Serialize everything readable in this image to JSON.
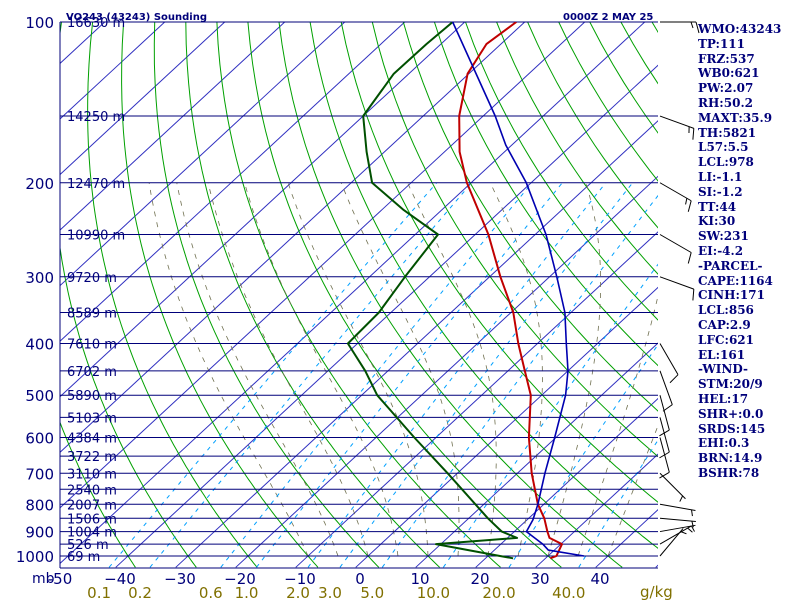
{
  "header": {
    "station": "VO243 (43243) Sounding",
    "valid": "0000Z  2 MAY 25"
  },
  "indices": [
    "WMO:43243",
    "TP:111",
    "FRZ:537",
    "WB0:621",
    "PW:2.07",
    "RH:50.2",
    "MAXT:35.9",
    "TH:5821",
    "L57:5.5",
    "LCL:978",
    "LI:-1.1",
    "SI:-1.2",
    "TT:44",
    "KI:30",
    "SW:231",
    "EI:-4.2",
    "-PARCEL-",
    "CAPE:1164",
    "CINH:171",
    "LCL:856",
    "CAP:2.9",
    "LFC:621",
    "EL:161",
    "-WIND-",
    "STM:20/9",
    "HEL:17",
    "SHR+:0.0",
    "SRDS:145",
    "EHI:0.3",
    "BRN:14.9",
    "BSHR:78"
  ],
  "colors": {
    "isobar": "#00007a",
    "isotherm": "#3030c0",
    "dry_adiabat": "#00a000",
    "mixing_ratio": "#00a0ff",
    "moist_adiabat": "#707050",
    "temperature": "#c00000",
    "dewpoint": "#005000",
    "parcel": "#0000b0",
    "mixing_ratio_labels": "#807000"
  },
  "chart_data": {
    "type": "line",
    "title": "",
    "xlabel": "",
    "ylabel": "mb",
    "pressure_unit_label": "mb",
    "mixing_ratio_unit_label": "g/kg",
    "pressure_levels": [
      {
        "p": 100,
        "label": "100",
        "height": "16630 m"
      },
      {
        "p": 150,
        "label": "",
        "height": "14250 m"
      },
      {
        "p": 200,
        "label": "200",
        "height": "12470 m"
      },
      {
        "p": 250,
        "label": "",
        "height": "10990 m"
      },
      {
        "p": 300,
        "label": "300",
        "height": "9720 m"
      },
      {
        "p": 350,
        "label": "",
        "height": "8589 m"
      },
      {
        "p": 400,
        "label": "400",
        "height": "7610 m"
      },
      {
        "p": 450,
        "label": "",
        "height": "6702 m"
      },
      {
        "p": 500,
        "label": "500",
        "height": "5890 m"
      },
      {
        "p": 550,
        "label": "",
        "height": "5103 m"
      },
      {
        "p": 600,
        "label": "600",
        "height": "4384 m"
      },
      {
        "p": 650,
        "label": "",
        "height": "3722 m"
      },
      {
        "p": 700,
        "label": "700",
        "height": "3110 m"
      },
      {
        "p": 750,
        "label": "",
        "height": "2540 m"
      },
      {
        "p": 800,
        "label": "800",
        "height": "2007 m"
      },
      {
        "p": 850,
        "label": "",
        "height": "1506 m"
      },
      {
        "p": 900,
        "label": "900",
        "height": "1004 m"
      },
      {
        "p": 950,
        "label": "",
        "height": "526 m"
      },
      {
        "p": 1000,
        "label": "1000",
        "height": "69 m"
      }
    ],
    "temperature_ticks": [
      -50,
      -40,
      -30,
      -20,
      -10,
      0,
      10,
      20,
      30,
      40
    ],
    "temperature_tick_labels": [
      "-50",
      "−40",
      "−30",
      "−20",
      "−10",
      "0",
      "10",
      "20",
      "30",
      "40"
    ],
    "mixing_ratio_labels": [
      "0.1",
      "0.2",
      "0.6",
      "1.0",
      "2.0",
      "3.0",
      "5.0",
      "10.0",
      "20.0",
      "40.0"
    ],
    "mixing_ratio_values": [
      0.1,
      0.2,
      0.6,
      1.0,
      2.0,
      3.0,
      5.0,
      10.0,
      20.0,
      40.0
    ],
    "xlim": [
      -50,
      50
    ],
    "ylim": [
      1050,
      100
    ],
    "series": [
      {
        "key": "temperature",
        "points": [
          [
            1010,
            30.8
          ],
          [
            1000,
            31.4
          ],
          [
            950,
            30.2
          ],
          [
            925,
            27.0
          ],
          [
            900,
            25.5
          ],
          [
            850,
            22.6
          ],
          [
            800,
            19.0
          ],
          [
            700,
            12.4
          ],
          [
            600,
            5.5
          ],
          [
            500,
            -1.8
          ],
          [
            450,
            -7.2
          ],
          [
            400,
            -13.2
          ],
          [
            350,
            -19.6
          ],
          [
            300,
            -28.2
          ],
          [
            250,
            -37.8
          ],
          [
            200,
            -50.7
          ],
          [
            175,
            -57.5
          ],
          [
            150,
            -64.0
          ],
          [
            125,
            -70.2
          ],
          [
            110,
            -72.4
          ],
          [
            100,
            -71.4
          ]
        ]
      },
      {
        "key": "dewpoint",
        "points": [
          [
            1010,
            24.6
          ],
          [
            1000,
            22.0
          ],
          [
            950,
            9.2
          ],
          [
            925,
            21.6
          ],
          [
            900,
            17.9
          ],
          [
            850,
            13.2
          ],
          [
            700,
            -1.6
          ],
          [
            600,
            -13.6
          ],
          [
            500,
            -27.4
          ],
          [
            450,
            -33.8
          ],
          [
            400,
            -41.6
          ],
          [
            350,
            -42.0
          ],
          [
            300,
            -44.1
          ],
          [
            250,
            -46.2
          ],
          [
            225,
            -56.3
          ],
          [
            200,
            -66.5
          ],
          [
            175,
            -73.0
          ],
          [
            150,
            -80.0
          ],
          [
            125,
            -82.5
          ],
          [
            110,
            -82.4
          ],
          [
            100,
            -82.0
          ]
        ]
      },
      {
        "key": "parcel",
        "points": [
          [
            1000,
            36.0
          ],
          [
            975,
            29.0
          ],
          [
            950,
            27.0
          ],
          [
            900,
            22.0
          ],
          [
            856,
            21.0
          ],
          [
            800,
            19.0
          ],
          [
            700,
            14.6
          ],
          [
            600,
            9.8
          ],
          [
            500,
            4.0
          ],
          [
            450,
            0.0
          ],
          [
            400,
            -5.2
          ],
          [
            350,
            -11.0
          ],
          [
            300,
            -18.8
          ],
          [
            250,
            -28.2
          ],
          [
            200,
            -40.8
          ],
          [
            170,
            -51.0
          ],
          [
            150,
            -58.0
          ],
          [
            100,
            -82.0
          ]
        ]
      }
    ],
    "wind_barbs": [
      {
        "p": 1000,
        "dir": 40,
        "spd": 5
      },
      {
        "p": 950,
        "dir": 60,
        "spd": 5
      },
      {
        "p": 900,
        "dir": 80,
        "spd": 5
      },
      {
        "p": 850,
        "dir": 95,
        "spd": 5
      },
      {
        "p": 800,
        "dir": 100,
        "spd": 5
      },
      {
        "p": 700,
        "dir": 135,
        "spd": 5
      },
      {
        "p": 600,
        "dir": 165,
        "spd": 10
      },
      {
        "p": 550,
        "dir": 165,
        "spd": 10
      },
      {
        "p": 500,
        "dir": 165,
        "spd": 10
      },
      {
        "p": 450,
        "dir": 160,
        "spd": 10
      },
      {
        "p": 400,
        "dir": 150,
        "spd": 10
      },
      {
        "p": 300,
        "dir": 110,
        "spd": 10
      },
      {
        "p": 250,
        "dir": 120,
        "spd": 10
      },
      {
        "p": 200,
        "dir": 120,
        "spd": 15
      },
      {
        "p": 150,
        "dir": 110,
        "spd": 15
      },
      {
        "p": 100,
        "dir": 90,
        "spd": 15
      }
    ]
  }
}
